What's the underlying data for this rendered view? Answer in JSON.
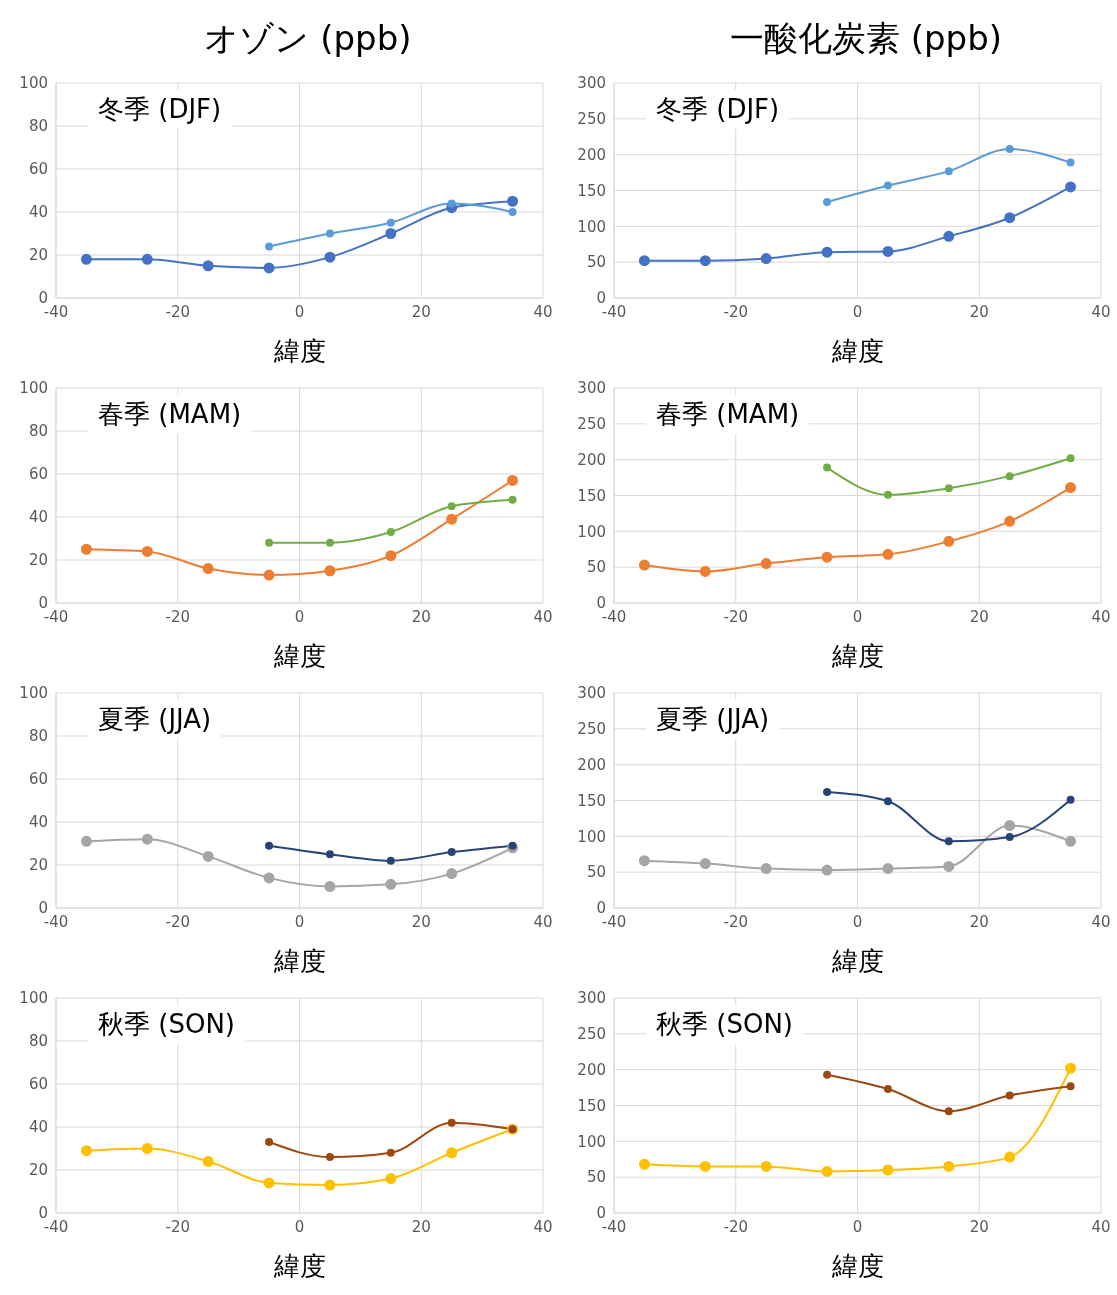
{
  "chart_data": [
    {
      "type": "line",
      "title": "オゾン (ppb)",
      "subtitle": "冬季 (DJF)",
      "xlabel": "緯度",
      "xlim": [
        -40,
        40
      ],
      "xticks": [
        -40,
        -20,
        0,
        20,
        40
      ],
      "ylim": [
        0,
        100
      ],
      "yticks": [
        0,
        20,
        40,
        60,
        80,
        100
      ],
      "grid": true,
      "marker": "circle",
      "series": [
        {
          "color": "#4472c4",
          "x": [
            -35,
            -25,
            -15,
            -5,
            5,
            15,
            25,
            35
          ],
          "values": [
            18,
            18,
            15,
            14,
            19,
            30,
            42,
            45
          ]
        },
        {
          "color": "#5b9bd5",
          "x": [
            -5,
            5,
            15,
            25,
            35
          ],
          "values": [
            24,
            30,
            35,
            44,
            40
          ]
        }
      ]
    },
    {
      "type": "line",
      "title": "一酸化炭素 (ppb)",
      "subtitle": "冬季 (DJF)",
      "xlabel": "緯度",
      "xlim": [
        -40,
        40
      ],
      "xticks": [
        -40,
        -20,
        0,
        20,
        40
      ],
      "ylim": [
        0,
        300
      ],
      "yticks": [
        0,
        50,
        100,
        150,
        200,
        250,
        300
      ],
      "grid": true,
      "marker": "circle",
      "series": [
        {
          "color": "#4472c4",
          "x": [
            -35,
            -25,
            -15,
            -5,
            5,
            15,
            25,
            35
          ],
          "values": [
            52,
            52,
            55,
            64,
            65,
            86,
            112,
            155
          ]
        },
        {
          "color": "#5b9bd5",
          "x": [
            -5,
            5,
            15,
            25,
            35
          ],
          "values": [
            134,
            157,
            177,
            208,
            189
          ]
        }
      ]
    },
    {
      "type": "line",
      "subtitle": "春季 (MAM)",
      "xlabel": "緯度",
      "xlim": [
        -40,
        40
      ],
      "xticks": [
        -40,
        -20,
        0,
        20,
        40
      ],
      "ylim": [
        0,
        100
      ],
      "yticks": [
        0,
        20,
        40,
        60,
        80,
        100
      ],
      "grid": true,
      "marker": "circle",
      "series": [
        {
          "color": "#ed7d31",
          "x": [
            -35,
            -25,
            -15,
            -5,
            5,
            15,
            25,
            35
          ],
          "values": [
            25,
            24,
            16,
            13,
            15,
            22,
            39,
            57
          ]
        },
        {
          "color": "#70ad47",
          "x": [
            -5,
            5,
            15,
            25,
            35
          ],
          "values": [
            28,
            28,
            33,
            45,
            48
          ]
        }
      ]
    },
    {
      "type": "line",
      "subtitle": "春季 (MAM)",
      "xlabel": "緯度",
      "xlim": [
        -40,
        40
      ],
      "xticks": [
        -40,
        -20,
        0,
        20,
        40
      ],
      "ylim": [
        0,
        300
      ],
      "yticks": [
        0,
        50,
        100,
        150,
        200,
        250,
        300
      ],
      "grid": true,
      "marker": "circle",
      "series": [
        {
          "color": "#ed7d31",
          "x": [
            -35,
            -25,
            -15,
            -5,
            5,
            15,
            25,
            35
          ],
          "values": [
            53,
            44,
            55,
            64,
            68,
            86,
            114,
            161
          ]
        },
        {
          "color": "#70ad47",
          "x": [
            -5,
            5,
            15,
            25,
            35
          ],
          "values": [
            189,
            151,
            160,
            177,
            202
          ]
        }
      ]
    },
    {
      "type": "line",
      "subtitle": "夏季 (JJA)",
      "xlabel": "緯度",
      "xlim": [
        -40,
        40
      ],
      "xticks": [
        -40,
        -20,
        0,
        20,
        40
      ],
      "ylim": [
        0,
        100
      ],
      "yticks": [
        0,
        20,
        40,
        60,
        80,
        100
      ],
      "grid": true,
      "marker": "circle",
      "series": [
        {
          "color": "#a5a5a5",
          "x": [
            -35,
            -25,
            -15,
            -5,
            5,
            15,
            25,
            35
          ],
          "values": [
            31,
            32,
            24,
            14,
            10,
            11,
            16,
            28
          ]
        },
        {
          "color": "#264478",
          "x": [
            -5,
            5,
            15,
            25,
            35
          ],
          "values": [
            29,
            25,
            22,
            26,
            29
          ]
        }
      ]
    },
    {
      "type": "line",
      "subtitle": "夏季 (JJA)",
      "xlabel": "緯度",
      "xlim": [
        -40,
        40
      ],
      "xticks": [
        -40,
        -20,
        0,
        20,
        40
      ],
      "ylim": [
        0,
        300
      ],
      "yticks": [
        0,
        50,
        100,
        150,
        200,
        250,
        300
      ],
      "grid": true,
      "marker": "circle",
      "series": [
        {
          "color": "#a5a5a5",
          "x": [
            -35,
            -25,
            -15,
            -5,
            5,
            15,
            25,
            35
          ],
          "values": [
            66,
            62,
            55,
            53,
            55,
            58,
            115,
            93
          ]
        },
        {
          "color": "#264478",
          "x": [
            -5,
            5,
            15,
            25,
            35
          ],
          "values": [
            162,
            149,
            93,
            99,
            151
          ]
        }
      ]
    },
    {
      "type": "line",
      "subtitle": "秋季 (SON)",
      "xlabel": "緯度",
      "xlim": [
        -40,
        40
      ],
      "xticks": [
        -40,
        -20,
        0,
        20,
        40
      ],
      "ylim": [
        0,
        100
      ],
      "yticks": [
        0,
        20,
        40,
        60,
        80,
        100
      ],
      "grid": true,
      "marker": "circle",
      "series": [
        {
          "color": "#ffc000",
          "x": [
            -35,
            -25,
            -15,
            -5,
            5,
            15,
            25,
            35
          ],
          "values": [
            29,
            30,
            24,
            14,
            13,
            16,
            28,
            39
          ]
        },
        {
          "color": "#9e480e",
          "x": [
            -5,
            5,
            15,
            25,
            35
          ],
          "values": [
            33,
            26,
            28,
            42,
            39
          ]
        }
      ]
    },
    {
      "type": "line",
      "subtitle": "秋季 (SON)",
      "xlabel": "緯度",
      "xlim": [
        -40,
        40
      ],
      "xticks": [
        -40,
        -20,
        0,
        20,
        40
      ],
      "ylim": [
        0,
        300
      ],
      "yticks": [
        0,
        50,
        100,
        150,
        200,
        250,
        300
      ],
      "grid": true,
      "marker": "circle",
      "series": [
        {
          "color": "#ffc000",
          "x": [
            -35,
            -25,
            -15,
            -5,
            5,
            15,
            25,
            35
          ],
          "values": [
            68,
            65,
            65,
            58,
            60,
            65,
            78,
            202
          ]
        },
        {
          "color": "#9e480e",
          "x": [
            -5,
            5,
            15,
            25,
            35
          ],
          "values": [
            193,
            173,
            142,
            164,
            177
          ]
        }
      ]
    }
  ]
}
